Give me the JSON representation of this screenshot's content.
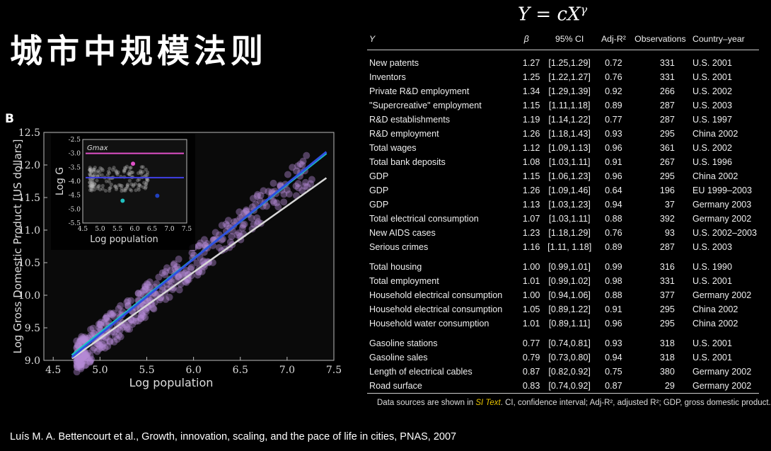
{
  "slide": {
    "title": "城市中规模法则",
    "formula": "Y = cX^γ",
    "panel_label": "B",
    "citation": "Luís M. A. Bettencourt et al., Growth, innovation, scaling, and the pace of life in cities, PNAS, 2007"
  },
  "table": {
    "headers": [
      "Y",
      "β",
      "95% CI",
      "Adj-R²",
      "Observations",
      "Country–year"
    ],
    "groups": [
      [
        [
          "New patents",
          "1.27",
          "[1.25,1.29]",
          "0.72",
          "331",
          "U.S. 2001"
        ],
        [
          "Inventors",
          "1.25",
          "[1.22,1.27]",
          "0.76",
          "331",
          "U.S. 2001"
        ],
        [
          "Private R&D employment",
          "1.34",
          "[1.29,1.39]",
          "0.92",
          "266",
          "U.S. 2002"
        ],
        [
          "\"Supercreative\" employment",
          "1.15",
          "[1.11,1.18]",
          "0.89",
          "287",
          "U.S. 2003"
        ],
        [
          "R&D establishments",
          "1.19",
          "[1.14,1.22]",
          "0.77",
          "287",
          "U.S. 1997"
        ],
        [
          "R&D employment",
          "1.26",
          "[1.18,1.43]",
          "0.93",
          "295",
          "China 2002"
        ],
        [
          "Total wages",
          "1.12",
          "[1.09,1.13]",
          "0.96",
          "361",
          "U.S. 2002"
        ],
        [
          "Total bank deposits",
          "1.08",
          "[1.03,1.11]",
          "0.91",
          "267",
          "U.S. 1996"
        ],
        [
          "GDP",
          "1.15",
          "[1.06,1.23]",
          "0.96",
          "295",
          "China 2002"
        ],
        [
          "GDP",
          "1.26",
          "[1.09,1.46]",
          "0.64",
          "196",
          "EU 1999–2003"
        ],
        [
          "GDP",
          "1.13",
          "[1.03,1.23]",
          "0.94",
          "37",
          "Germany 2003"
        ],
        [
          "Total electrical consumption",
          "1.07",
          "[1.03,1.11]",
          "0.88",
          "392",
          "Germany 2002"
        ],
        [
          "New AIDS cases",
          "1.23",
          "[1.18,1.29]",
          "0.76",
          "93",
          "U.S. 2002–2003"
        ],
        [
          "Serious crimes",
          "1.16",
          "[1.11, 1.18]",
          "0.89",
          "287",
          "U.S. 2003"
        ]
      ],
      [
        [
          "Total housing",
          "1.00",
          "[0.99,1.01]",
          "0.99",
          "316",
          "U.S. 1990"
        ],
        [
          "Total employment",
          "1.01",
          "[0.99,1.02]",
          "0.98",
          "331",
          "U.S. 2001"
        ],
        [
          "Household electrical consumption",
          "1.00",
          "[0.94,1.06]",
          "0.88",
          "377",
          "Germany 2002"
        ],
        [
          "Household electrical consumption",
          "1.05",
          "[0.89,1.22]",
          "0.91",
          "295",
          "China 2002"
        ],
        [
          "Household water consumption",
          "1.01",
          "[0.89,1.11]",
          "0.96",
          "295",
          "China 2002"
        ]
      ],
      [
        [
          "Gasoline stations",
          "0.77",
          "[0.74,0.81]",
          "0.93",
          "318",
          "U.S. 2001"
        ],
        [
          "Gasoline sales",
          "0.79",
          "[0.73,0.80]",
          "0.94",
          "318",
          "U.S. 2001"
        ],
        [
          "Length of electrical cables",
          "0.87",
          "[0.82,0.92]",
          "0.75",
          "380",
          "Germany 2002"
        ],
        [
          "Road surface",
          "0.83",
          "[0.74,0.92]",
          "0.87",
          "29",
          "Germany 2002"
        ]
      ]
    ],
    "footnote_pre": "Data sources are shown in ",
    "footnote_link": "SI Text",
    "footnote_post": ". CI, confidence interval; Adj-R², adjusted R²; GDP, gross domestic product."
  },
  "chart_data": [
    {
      "type": "scatter",
      "xlabel": "Log population",
      "ylabel": "Log Gross Domestic Product [US dollars]",
      "xlim": [
        4.4,
        7.5
      ],
      "ylim": [
        9.0,
        12.5
      ],
      "xticks": [
        "4.5",
        "5.0",
        "5.5",
        "6.0",
        "6.5",
        "7.0",
        "7.5"
      ],
      "yticks": [
        "9.0",
        "9.5",
        "10.0",
        "10.5",
        "11.0",
        "11.5",
        "12.0",
        "12.5"
      ],
      "point_color": "#b48ad6",
      "series": [
        {
          "x": [
            4.7,
            7.42
          ],
          "y": [
            9.05,
            12.2
          ],
          "color": "#3050e0"
        },
        {
          "x": [
            4.7,
            7.42
          ],
          "y": [
            9.08,
            12.18
          ],
          "color": "#18c8c0"
        },
        {
          "x": [
            4.7,
            7.42
          ],
          "y": [
            9.03,
            11.8
          ],
          "color": "#d8d8d8"
        }
      ]
    },
    {
      "type": "scatter",
      "xlabel": "Log population",
      "ylabel": "Log G",
      "annotation": "Gmax",
      "xlim": [
        4.5,
        7.5
      ],
      "ylim": [
        -5.5,
        -2.5
      ],
      "xticks": [
        "4.5",
        "5.0",
        "5.5",
        "6.0",
        "6.5",
        "7.0",
        "7.5"
      ],
      "yticks": [
        "-2.5",
        "-3.0",
        "-3.5",
        "-4.0",
        "-4.5",
        "-5.0",
        "-5.5"
      ],
      "hlines": [
        {
          "y": -3.0,
          "color": "#e050c8"
        },
        {
          "y": -3.87,
          "color": "#4040e8"
        }
      ],
      "highlights": [
        {
          "x": 5.95,
          "y": -3.37,
          "color": "#e050c8"
        },
        {
          "x": 5.65,
          "y": -4.7,
          "color": "#20c0c0"
        },
        {
          "x": 6.65,
          "y": -4.52,
          "color": "#2040c0"
        }
      ]
    }
  ]
}
